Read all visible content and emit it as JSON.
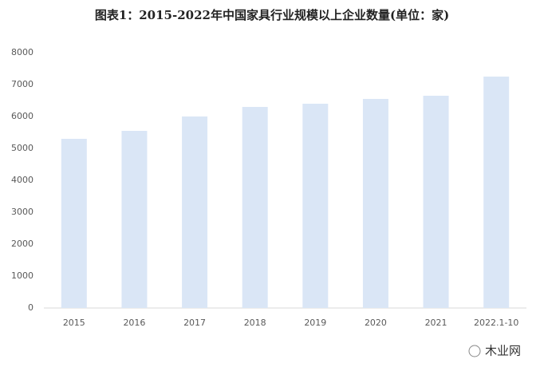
{
  "chart_data": {
    "type": "bar",
    "title": "图表1：2015-2022年中国家具行业规模以上企业数量(单位：家)",
    "categories": [
      "2015",
      "2016",
      "2017",
      "2018",
      "2019",
      "2020",
      "2021",
      "2022.1-10"
    ],
    "values": [
      5300,
      5550,
      6000,
      6300,
      6400,
      6550,
      6650,
      7250
    ],
    "color": "#dae6f6",
    "ylim": [
      0,
      8000
    ],
    "yticks": [
      0,
      1000,
      2000,
      3000,
      4000,
      5000,
      6000,
      7000,
      8000
    ],
    "grid": false,
    "watermark": "木业网"
  }
}
